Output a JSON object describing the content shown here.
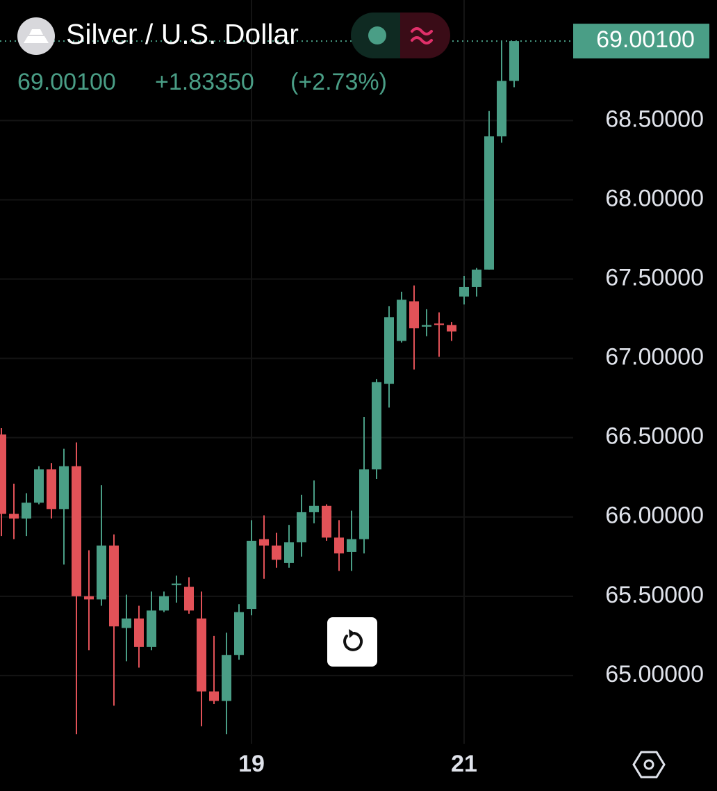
{
  "chart_data": {
    "type": "candlestick",
    "title": "Silver / U.S. Dollar",
    "price": "69.00100",
    "change": "+1.83350",
    "change_pct": "(+2.73%)",
    "last_price": {
      "value": 69.001,
      "label": "69.00100"
    },
    "up_color": "#4a9e86",
    "down_color": "#e25258",
    "grid": true,
    "categories": [
      null,
      null,
      null,
      null,
      null,
      null,
      null,
      null,
      null,
      null,
      null,
      null,
      null,
      null,
      null,
      null,
      null,
      null,
      null,
      null,
      "19",
      null,
      null,
      null,
      null,
      null,
      null,
      null,
      null,
      null,
      null,
      null,
      null,
      null,
      null,
      null,
      null,
      "21",
      null,
      null,
      null,
      null
    ],
    "open": [
      66.52,
      66.02,
      65.99,
      66.09,
      66.3,
      66.05,
      66.32,
      65.5,
      65.48,
      65.82,
      65.3,
      65.36,
      65.18,
      65.41,
      65.57,
      65.56,
      65.36,
      64.9,
      64.84,
      65.13,
      65.42,
      65.86,
      65.82,
      65.71,
      65.84,
      66.03,
      66.07,
      65.87,
      65.78,
      65.86,
      66.3,
      66.84,
      67.11,
      67.36,
      67.2,
      67.22,
      67.21,
      67.39,
      67.45,
      67.56,
      68.4,
      68.75
    ],
    "high": [
      66.56,
      66.21,
      66.15,
      66.32,
      66.34,
      66.43,
      66.47,
      65.79,
      66.2,
      65.89,
      65.51,
      65.44,
      65.53,
      65.53,
      65.63,
      65.62,
      65.53,
      65.25,
      65.27,
      65.45,
      65.98,
      66.01,
      65.9,
      65.95,
      66.14,
      66.23,
      66.08,
      65.98,
      66.04,
      66.63,
      66.87,
      67.33,
      67.42,
      67.46,
      67.31,
      67.29,
      67.23,
      67.52,
      67.57,
      68.56,
      69.0,
      69.0
    ],
    "low": [
      65.88,
      65.86,
      65.88,
      66.08,
      65.99,
      65.7,
      64.63,
      65.16,
      65.44,
      64.81,
      65.09,
      65.05,
      65.16,
      65.4,
      65.46,
      65.39,
      64.68,
      64.82,
      64.63,
      65.1,
      65.38,
      65.61,
      65.68,
      65.68,
      65.75,
      65.96,
      65.85,
      65.66,
      65.66,
      65.77,
      66.24,
      66.69,
      67.1,
      66.93,
      67.14,
      67.01,
      67.11,
      67.34,
      67.39,
      67.56,
      68.36,
      68.71
    ],
    "close": [
      66.02,
      65.99,
      66.09,
      66.3,
      66.05,
      66.32,
      65.5,
      65.48,
      65.82,
      65.31,
      65.36,
      65.18,
      65.41,
      65.5,
      65.58,
      65.41,
      64.9,
      64.84,
      65.13,
      65.4,
      65.85,
      65.82,
      65.73,
      65.84,
      66.03,
      66.07,
      65.87,
      65.77,
      65.86,
      66.3,
      66.85,
      67.26,
      67.37,
      67.19,
      67.21,
      67.21,
      67.17,
      67.45,
      67.56,
      68.4,
      68.75,
      69.001
    ],
    "ylim": [
      64.57,
      69.26
    ],
    "yticks": [
      {
        "value": 65,
        "label": "65.00000"
      },
      {
        "value": 65.5,
        "label": "65.50000"
      },
      {
        "value": 66,
        "label": "66.00000"
      },
      {
        "value": 66.5,
        "label": "66.50000"
      },
      {
        "value": 67,
        "label": "67.00000"
      },
      {
        "value": 67.5,
        "label": "67.50000"
      },
      {
        "value": 68,
        "label": "68.00000"
      },
      {
        "value": 68.5,
        "label": "68.50000"
      }
    ]
  }
}
